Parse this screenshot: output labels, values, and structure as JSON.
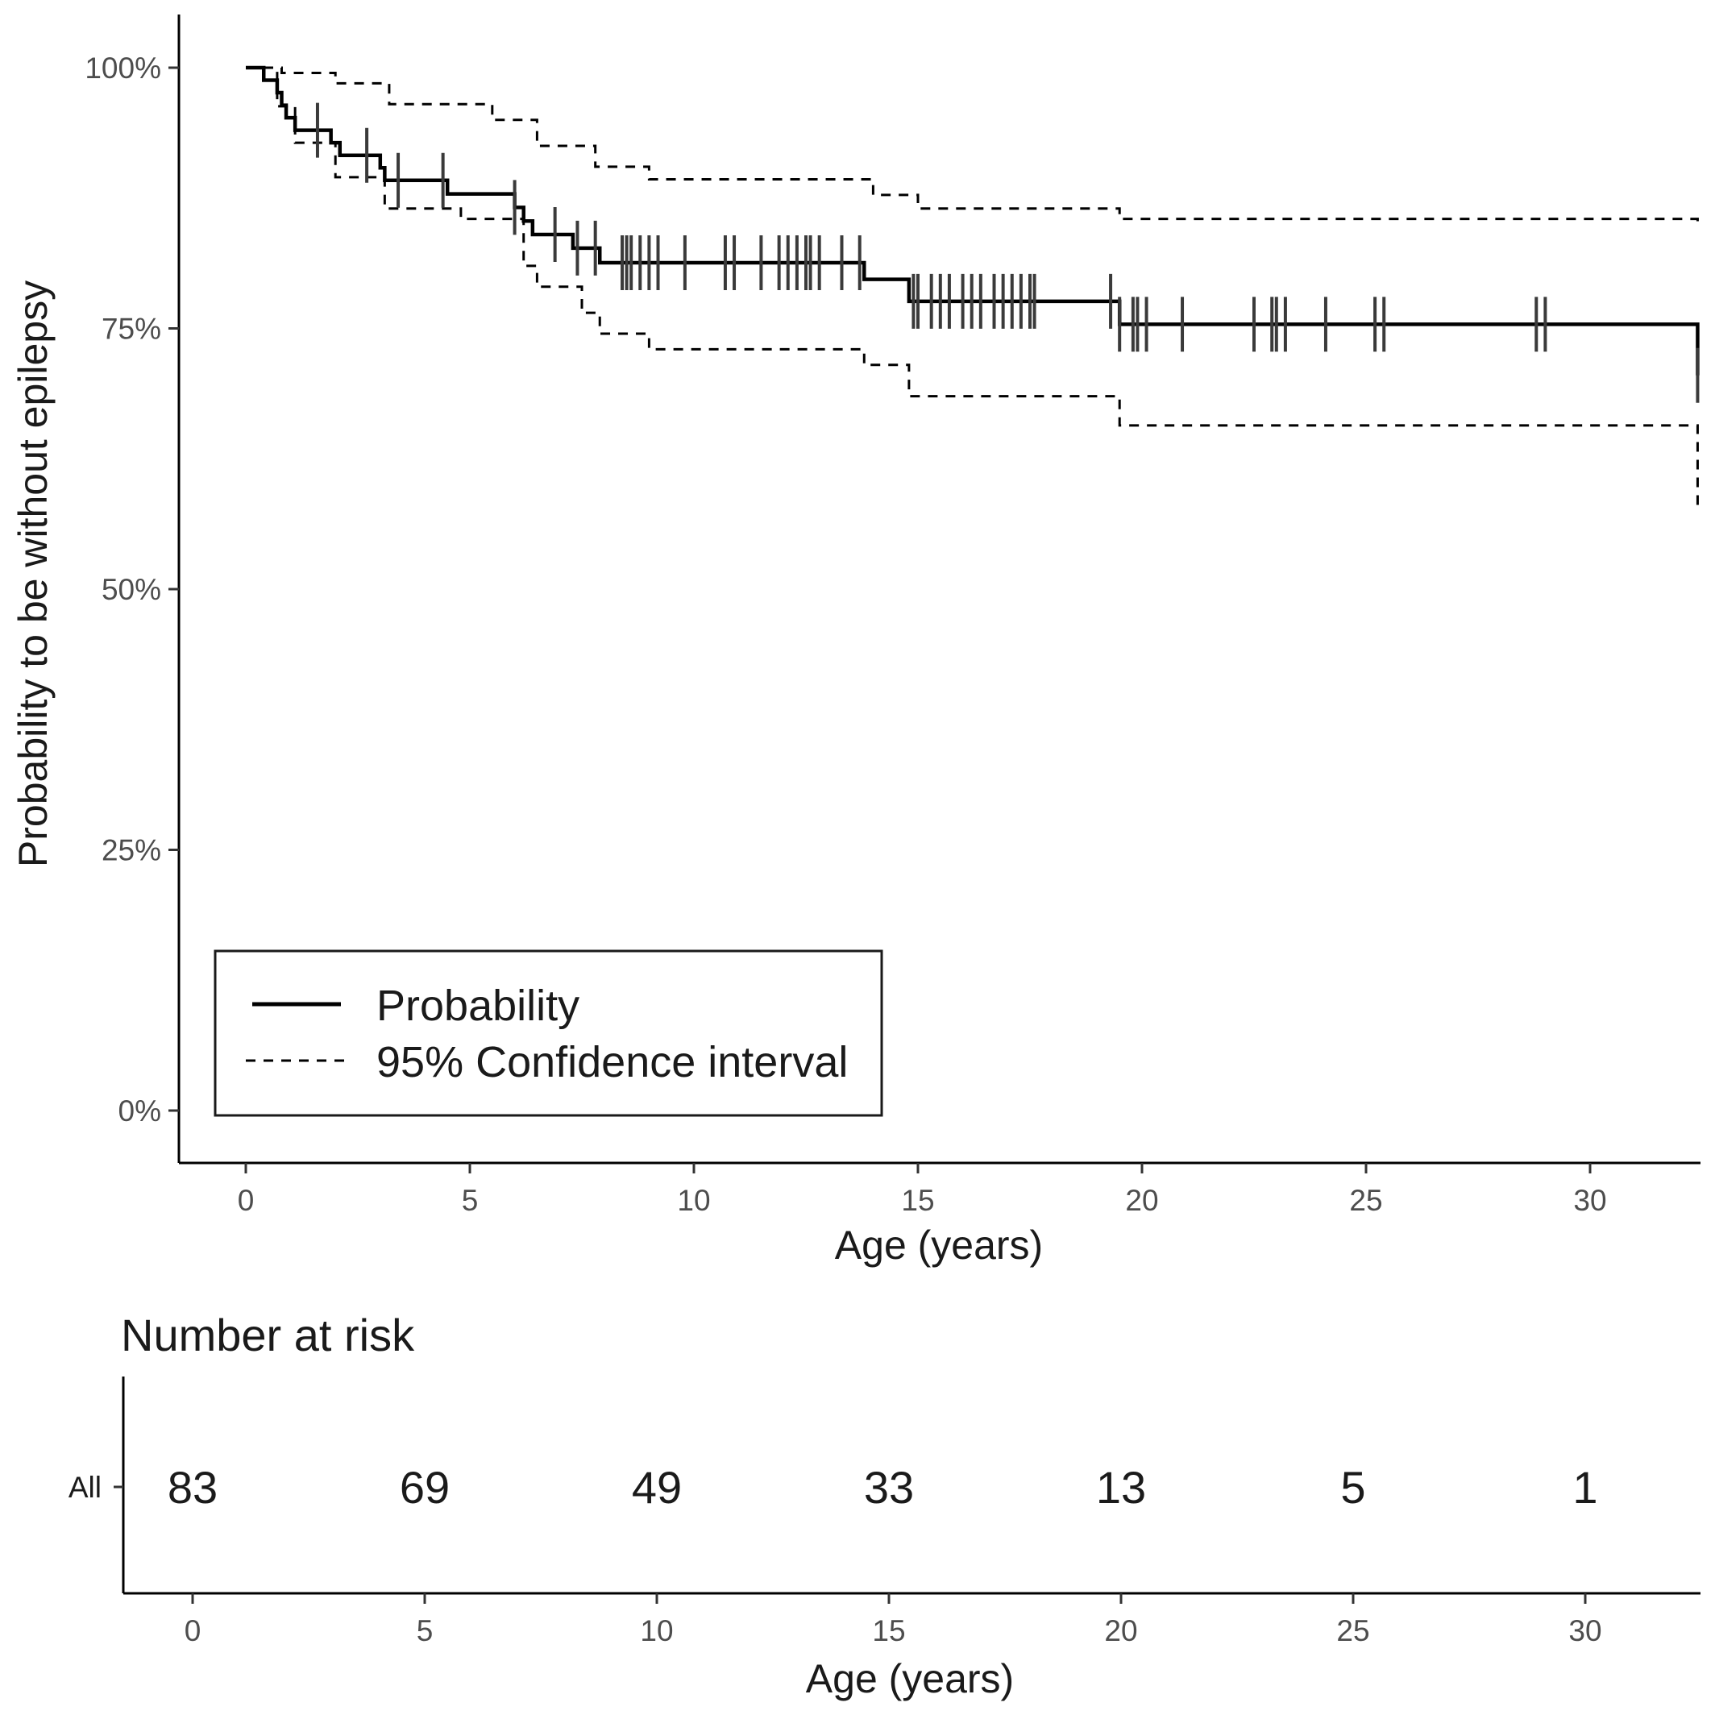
{
  "chart_data": [
    {
      "type": "line",
      "chart_kind": "kaplan-meier survival curve",
      "xlabel": "Age (years)",
      "ylabel": "Probability to be without epilepsy",
      "xlim": [
        0,
        32.5
      ],
      "ylim": [
        0,
        1
      ],
      "xticks": [
        0,
        5,
        10,
        15,
        20,
        25,
        30
      ],
      "xtick_labels": [
        "0",
        "5",
        "10",
        "15",
        "20",
        "25",
        "30"
      ],
      "yticks": [
        0,
        0.25,
        0.5,
        0.75,
        1.0
      ],
      "ytick_labels": [
        "0%",
        "25%",
        "50%",
        "75%",
        "100%"
      ],
      "grid": false,
      "legend": {
        "placement": "bottom-left",
        "entries": [
          {
            "label": "Probability",
            "style": "solid"
          },
          {
            "label": "95% Confidence interval",
            "style": "dashed"
          }
        ]
      },
      "series": [
        {
          "name": "Probability",
          "style": "solid",
          "step": true,
          "x": [
            0,
            0.4,
            0.7,
            0.8,
            0.9,
            1.1,
            1.9,
            2.1,
            3.0,
            3.1,
            4.5,
            6.0,
            6.2,
            6.4,
            7.3,
            7.9,
            13.8,
            14.8,
            19.5,
            32.4
          ],
          "y": [
            1.0,
            0.988,
            0.976,
            0.964,
            0.952,
            0.94,
            0.928,
            0.916,
            0.904,
            0.892,
            0.879,
            0.866,
            0.853,
            0.84,
            0.827,
            0.813,
            0.797,
            0.776,
            0.754,
            0.705
          ]
        },
        {
          "name": "95% Confidence interval (upper)",
          "style": "dashed",
          "step": true,
          "x": [
            0,
            0.8,
            2.0,
            3.2,
            5.5,
            6.5,
            7.8,
            9.0,
            14.0,
            15.0,
            19.5,
            32.4
          ],
          "y": [
            1.0,
            0.995,
            0.985,
            0.965,
            0.95,
            0.925,
            0.905,
            0.893,
            0.878,
            0.865,
            0.855,
            0.852
          ]
        },
        {
          "name": "95% Confidence interval (lower)",
          "style": "dashed",
          "step": true,
          "x": [
            0,
            0.7,
            1.1,
            2.0,
            3.1,
            4.8,
            6.2,
            6.5,
            7.5,
            7.9,
            9.0,
            13.8,
            14.8,
            19.5,
            32.4
          ],
          "y": [
            1.0,
            0.963,
            0.928,
            0.895,
            0.865,
            0.855,
            0.81,
            0.79,
            0.765,
            0.745,
            0.73,
            0.715,
            0.685,
            0.657,
            0.58
          ]
        }
      ],
      "censor_marks": {
        "x": [
          1.6,
          2.7,
          3.4,
          4.4,
          6.0,
          6.9,
          7.4,
          7.8,
          8.4,
          8.5,
          8.6,
          8.8,
          9.0,
          9.2,
          9.8,
          10.7,
          10.9,
          11.5,
          11.9,
          12.1,
          12.3,
          12.5,
          12.6,
          12.8,
          13.3,
          13.7,
          14.9,
          15.0,
          15.3,
          15.5,
          15.7,
          16.0,
          16.2,
          16.4,
          16.7,
          16.9,
          17.1,
          17.3,
          17.5,
          17.6,
          19.3,
          19.5,
          19.8,
          19.9,
          20.1,
          20.9,
          22.5,
          22.9,
          23.0,
          23.2,
          24.1,
          25.2,
          25.4,
          28.8,
          29.0,
          32.4
        ]
      }
    },
    {
      "type": "table",
      "title": "Number at risk",
      "xlabel": "Age (years)",
      "xlim": [
        0,
        32.5
      ],
      "xticks": [
        0,
        5,
        10,
        15,
        20,
        25,
        30
      ],
      "xtick_labels": [
        "0",
        "5",
        "10",
        "15",
        "20",
        "25",
        "30"
      ],
      "rows": [
        {
          "label": "All",
          "x": [
            0,
            5,
            10,
            15,
            20,
            25,
            30
          ],
          "values": [
            83,
            69,
            49,
            33,
            13,
            5,
            1
          ]
        }
      ]
    }
  ]
}
